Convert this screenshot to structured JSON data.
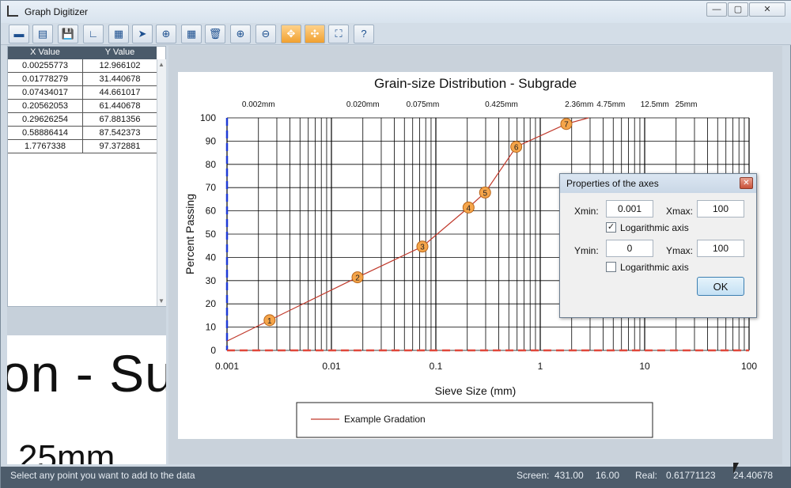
{
  "window": {
    "title": "Graph Digitizer"
  },
  "titlebar_buttons": {
    "minimize": "—",
    "maximize": "▢",
    "close": "✕"
  },
  "toolbar": {
    "buttons": [
      {
        "name": "open-image-button",
        "glyph": "▬"
      },
      {
        "name": "new-button",
        "glyph": "▤"
      },
      {
        "name": "save-button",
        "glyph": "💾"
      },
      {
        "name": "axes-button",
        "glyph": "∟"
      },
      {
        "name": "calculator-button",
        "glyph": "▦"
      },
      {
        "name": "select-pointer-button",
        "glyph": "➤"
      },
      {
        "name": "target-button",
        "glyph": "⊕"
      },
      {
        "name": "grid-button",
        "glyph": "▦"
      },
      {
        "name": "delete-button",
        "glyph": "🗑"
      },
      {
        "name": "zoom-in-button",
        "glyph": "⊕"
      },
      {
        "name": "zoom-out-button",
        "glyph": "⊖"
      },
      {
        "name": "fit-button",
        "glyph": "✥"
      },
      {
        "name": "shrink-button",
        "glyph": "✣"
      },
      {
        "name": "crop-button",
        "glyph": "⛶"
      },
      {
        "name": "help-button",
        "glyph": "?"
      }
    ]
  },
  "table": {
    "headers": [
      "X Value",
      "Y Value"
    ],
    "rows": [
      [
        "0.00255773",
        "12.966102"
      ],
      [
        "0.01778279",
        "31.440678"
      ],
      [
        "0.07434017",
        "44.661017"
      ],
      [
        "0.20562053",
        "61.440678"
      ],
      [
        "0.29626254",
        "67.881356"
      ],
      [
        "0.58886414",
        "87.542373"
      ],
      [
        "1.7767338",
        "97.372881"
      ]
    ]
  },
  "zoom_preview": {
    "line1": "on - Su",
    "line2": "25mm"
  },
  "chart_data": {
    "type": "line",
    "title": "Grain-size Distribution - Subgrade",
    "xlabel": "Sieve Size (mm)",
    "ylabel": "Percent Passing",
    "x_scale": "log",
    "xlim": [
      0.001,
      100
    ],
    "ylim": [
      0,
      100
    ],
    "x_ticks": [
      "0.001",
      "0.01",
      "0.1",
      "1",
      "10",
      "100"
    ],
    "y_ticks": [
      "0",
      "10",
      "20",
      "30",
      "40",
      "50",
      "60",
      "70",
      "80",
      "90",
      "100"
    ],
    "sieve_labels": [
      {
        "label": "0.002mm",
        "x": 0.002
      },
      {
        "label": "0.020mm",
        "x": 0.02
      },
      {
        "label": "0.075mm",
        "x": 0.075
      },
      {
        "label": "0.425mm",
        "x": 0.425
      },
      {
        "label": "2.36mm",
        "x": 2.36
      },
      {
        "label": "4.75mm",
        "x": 4.75
      },
      {
        "label": "12.5mm",
        "x": 12.5
      },
      {
        "label": "25mm",
        "x": 25
      }
    ],
    "series": [
      {
        "name": "Example Gradation",
        "color": "#c0392b",
        "x": [
          0.001,
          0.00255773,
          0.01778279,
          0.07434017,
          0.20562053,
          0.29626254,
          0.58886414,
          1.7767338,
          2.9
        ],
        "y": [
          4,
          12.966102,
          31.440678,
          44.661017,
          61.440678,
          67.881356,
          87.542373,
          97.372881,
          100
        ]
      }
    ],
    "markers": [
      {
        "label": "1",
        "x": 0.00255773,
        "y": 12.966102
      },
      {
        "label": "2",
        "x": 0.01778279,
        "y": 31.440678
      },
      {
        "label": "3",
        "x": 0.07434017,
        "y": 44.661017
      },
      {
        "label": "4",
        "x": 0.20562053,
        "y": 61.440678
      },
      {
        "label": "5",
        "x": 0.29626254,
        "y": 67.881356
      },
      {
        "label": "6",
        "x": 0.58886414,
        "y": 87.542373
      },
      {
        "label": "7",
        "x": 1.7767338,
        "y": 97.372881
      }
    ],
    "legend": {
      "entry": "Example Gradation",
      "placement": "bottom"
    },
    "grid": true
  },
  "dialog": {
    "title": "Properties of the axes",
    "xmin_label": "Xmin:",
    "xmin_value": "0.001",
    "xmax_label": "Xmax:",
    "xmax_value": "100",
    "x_log_label": "Logarithmic axis",
    "x_log_checked": true,
    "ymin_label": "Ymin:",
    "ymin_value": "0",
    "ymax_label": "Ymax:",
    "ymax_value": "100",
    "y_log_label": "Logarithmic axis",
    "y_log_checked": false,
    "ok_label": "OK",
    "close_glyph": "✕"
  },
  "status": {
    "message": "Select any point you want to add to the data",
    "screen_label": "Screen:",
    "screen_x": "431.00",
    "screen_y": "16.00",
    "real_label": "Real:",
    "real_x": "0.61771123",
    "real_y": "24.40678"
  }
}
